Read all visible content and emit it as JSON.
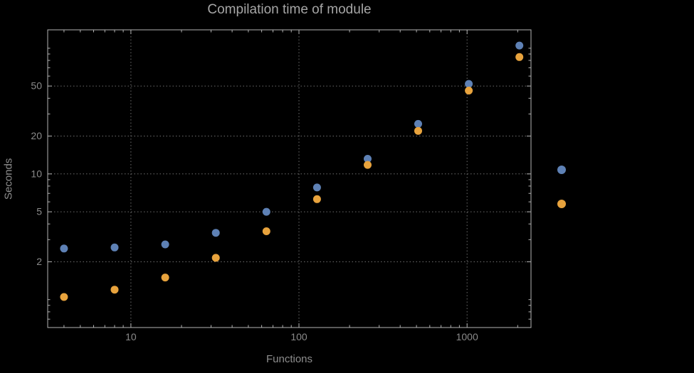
{
  "chart_data": {
    "type": "scatter",
    "title": "Compilation time of module",
    "xlabel": "Functions",
    "ylabel": "Seconds",
    "x_scale": "log",
    "y_scale": "log",
    "xlim": [
      3.2,
      2400
    ],
    "ylim": [
      0.6,
      140
    ],
    "grid": "dotted lines at labeled ticks",
    "legend_position": "right-outside",
    "x_ticks": [
      {
        "value": 10,
        "label": "10"
      },
      {
        "value": 100,
        "label": "100"
      },
      {
        "value": 1000,
        "label": "1000"
      }
    ],
    "y_ticks": [
      {
        "value": 2,
        "label": "2"
      },
      {
        "value": 5,
        "label": "5"
      },
      {
        "value": 10,
        "label": "10"
      },
      {
        "value": 20,
        "label": "20"
      },
      {
        "value": 50,
        "label": "50"
      }
    ],
    "x_minor_ticks": [
      4,
      5,
      6,
      7,
      8,
      9,
      20,
      30,
      40,
      50,
      60,
      70,
      80,
      90,
      200,
      300,
      400,
      500,
      600,
      700,
      800,
      900,
      2000
    ],
    "y_minor_ticks": [
      0.7,
      0.8,
      0.9,
      1,
      3,
      4,
      6,
      7,
      8,
      9,
      30,
      40,
      60,
      70,
      80,
      90,
      100
    ],
    "x": [
      4,
      8,
      16,
      32,
      64,
      128,
      256,
      512,
      1024,
      2048
    ],
    "series": [
      {
        "name": "blue",
        "color": "#5e81b5",
        "values": [
          2.55,
          2.6,
          2.75,
          3.4,
          5.0,
          7.8,
          13.2,
          25,
          52,
          105
        ]
      },
      {
        "name": "orange",
        "color": "#e8a33d",
        "values": [
          1.05,
          1.2,
          1.5,
          2.15,
          3.5,
          6.3,
          11.8,
          22,
          46,
          85
        ]
      }
    ]
  },
  "legend": {
    "markers": [
      {
        "name": "blue-series-marker",
        "color": "#5e81b5"
      },
      {
        "name": "orange-series-marker",
        "color": "#e8a33d"
      }
    ]
  },
  "colors": {
    "background": "#000000",
    "frame": "#b3b3b3",
    "grid": "#6e6e6e",
    "title_text": "#a6a6a6",
    "axis_label_text": "#8e8e8e",
    "tick_label_text": "#8a8a8a"
  }
}
